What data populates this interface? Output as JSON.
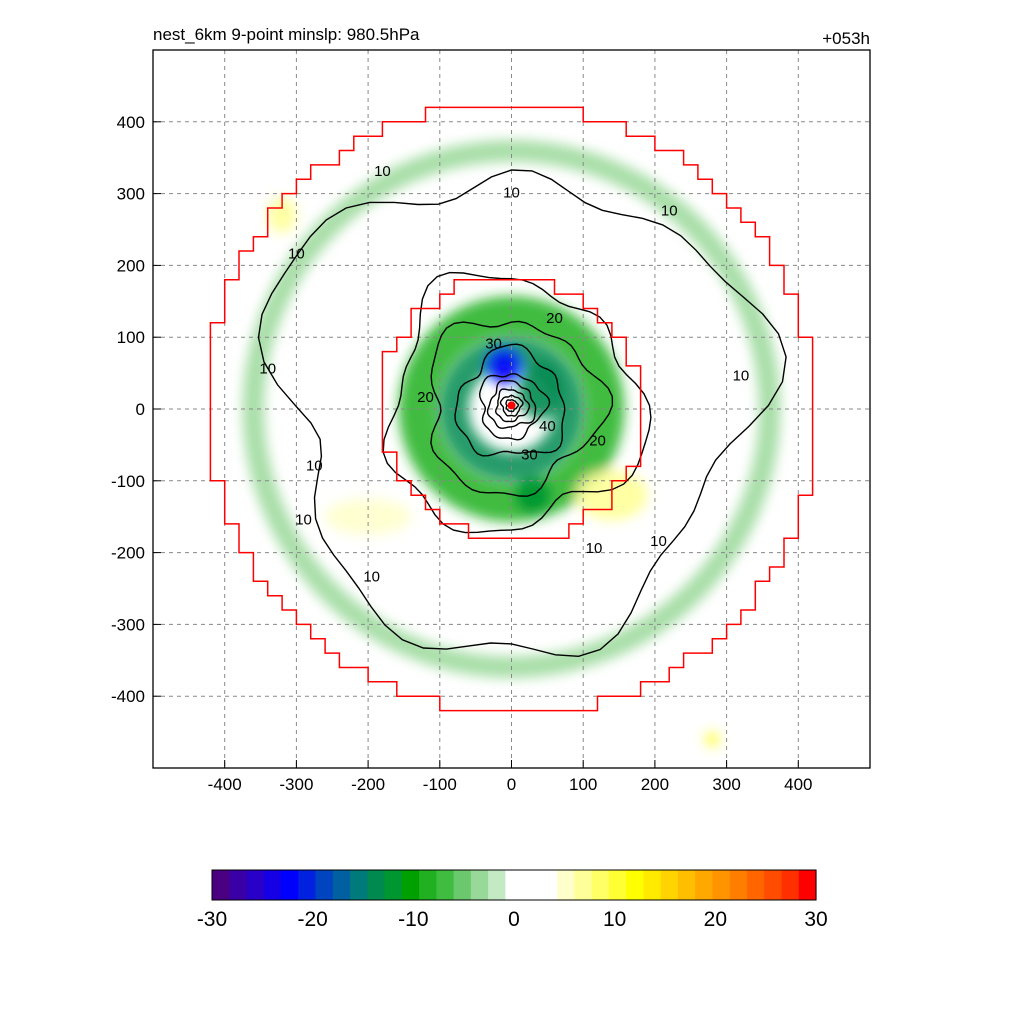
{
  "header": {
    "title": "nest_6km  9-point minslp: 980.5hPa",
    "forecast_hour": "+053h"
  },
  "chart_data": {
    "type": "heatmap",
    "title": "nest_6km  9-point minslp: 980.5hPa",
    "annotation": "+053h",
    "xlim": [
      -500,
      500
    ],
    "ylim": [
      -500,
      500
    ],
    "x_ticks": [
      -400,
      -300,
      -200,
      -100,
      0,
      100,
      200,
      300,
      400
    ],
    "y_ticks": [
      -400,
      -300,
      -200,
      -100,
      0,
      100,
      200,
      300,
      400
    ],
    "x_tick_labels": [
      "-400",
      "-300",
      "-200",
      "-100",
      "0",
      "100",
      "200",
      "300",
      "400"
    ],
    "y_tick_labels": [
      "-400",
      "-300",
      "-200",
      "-100",
      "0",
      "100",
      "200",
      "300",
      "400"
    ],
    "grid": true,
    "grid_style": "dashed",
    "center_marker": {
      "x": 0,
      "y": 5,
      "color": "#ff0000"
    },
    "red_boundaries": [
      {
        "name": "inner",
        "radius": 185
      },
      {
        "name": "outer",
        "radius": 425
      }
    ],
    "contours": {
      "levels": [
        10,
        20,
        30,
        40
      ],
      "labels": [
        {
          "text": "10",
          "x": -180,
          "y": 330
        },
        {
          "text": "10",
          "x": 0,
          "y": 300
        },
        {
          "text": "10",
          "x": 220,
          "y": 275
        },
        {
          "text": "10",
          "x": -300,
          "y": 215
        },
        {
          "text": "10",
          "x": -340,
          "y": 55
        },
        {
          "text": "10",
          "x": 320,
          "y": 45
        },
        {
          "text": "10",
          "x": -275,
          "y": -80
        },
        {
          "text": "10",
          "x": -290,
          "y": -155
        },
        {
          "text": "10",
          "x": -195,
          "y": -235
        },
        {
          "text": "10",
          "x": 115,
          "y": -195
        },
        {
          "text": "10",
          "x": 205,
          "y": -185
        },
        {
          "text": "20",
          "x": 60,
          "y": 125
        },
        {
          "text": "30",
          "x": -25,
          "y": 90
        },
        {
          "text": "20",
          "x": -120,
          "y": 15
        },
        {
          "text": "40",
          "x": 50,
          "y": -25
        },
        {
          "text": "20",
          "x": 120,
          "y": -45
        },
        {
          "text": "30",
          "x": 25,
          "y": -65
        }
      ]
    },
    "color_fill": [
      {
        "type": "ring",
        "radius": 130,
        "width": 55,
        "value": -9
      },
      {
        "type": "ring",
        "radius": 80,
        "width": 40,
        "value": -13
      },
      {
        "type": "blob",
        "x": -10,
        "y": 60,
        "rx": 25,
        "ry": 25,
        "value": -22
      },
      {
        "type": "blob",
        "x": 40,
        "y": 25,
        "rx": 30,
        "ry": 40,
        "value": -14
      },
      {
        "type": "blob",
        "x": 30,
        "y": -120,
        "rx": 25,
        "ry": 25,
        "value": -12
      },
      {
        "type": "ring",
        "radius": 360,
        "width": 30,
        "value": -4
      },
      {
        "type": "blob",
        "x": -200,
        "y": -150,
        "rx": 60,
        "ry": 25,
        "value": 5
      },
      {
        "type": "blob",
        "x": 140,
        "y": -120,
        "rx": 50,
        "ry": 35,
        "value": 6
      },
      {
        "type": "blob",
        "x": -320,
        "y": 270,
        "rx": 20,
        "ry": 25,
        "value": 7
      },
      {
        "type": "blob",
        "x": 280,
        "y": -460,
        "rx": 10,
        "ry": 10,
        "value": 10
      }
    ],
    "colorbar": {
      "min": -30,
      "max": 30,
      "tick_values": [
        -30,
        -20,
        -10,
        0,
        10,
        20,
        30
      ],
      "tick_labels": [
        "-30",
        "-20",
        "-10",
        "0",
        "10",
        "20",
        "30"
      ],
      "colors": [
        "#4b0082",
        "#3a00a6",
        "#2800c8",
        "#1500e6",
        "#0000ff",
        "#0022e0",
        "#0044c0",
        "#0060a0",
        "#007a7a",
        "#008a50",
        "#009630",
        "#00a000",
        "#20b020",
        "#40bc40",
        "#6cc86c",
        "#98d898",
        "#c4eac4",
        "#ffffff",
        "#ffffff",
        "#ffffff",
        "#ffffcc",
        "#ffff99",
        "#ffff66",
        "#ffff33",
        "#ffff00",
        "#ffea00",
        "#ffd400",
        "#ffbe00",
        "#ffa800",
        "#ff9400",
        "#ff7e00",
        "#ff6600",
        "#ff4c00",
        "#ff3000",
        "#ff0000"
      ]
    }
  }
}
